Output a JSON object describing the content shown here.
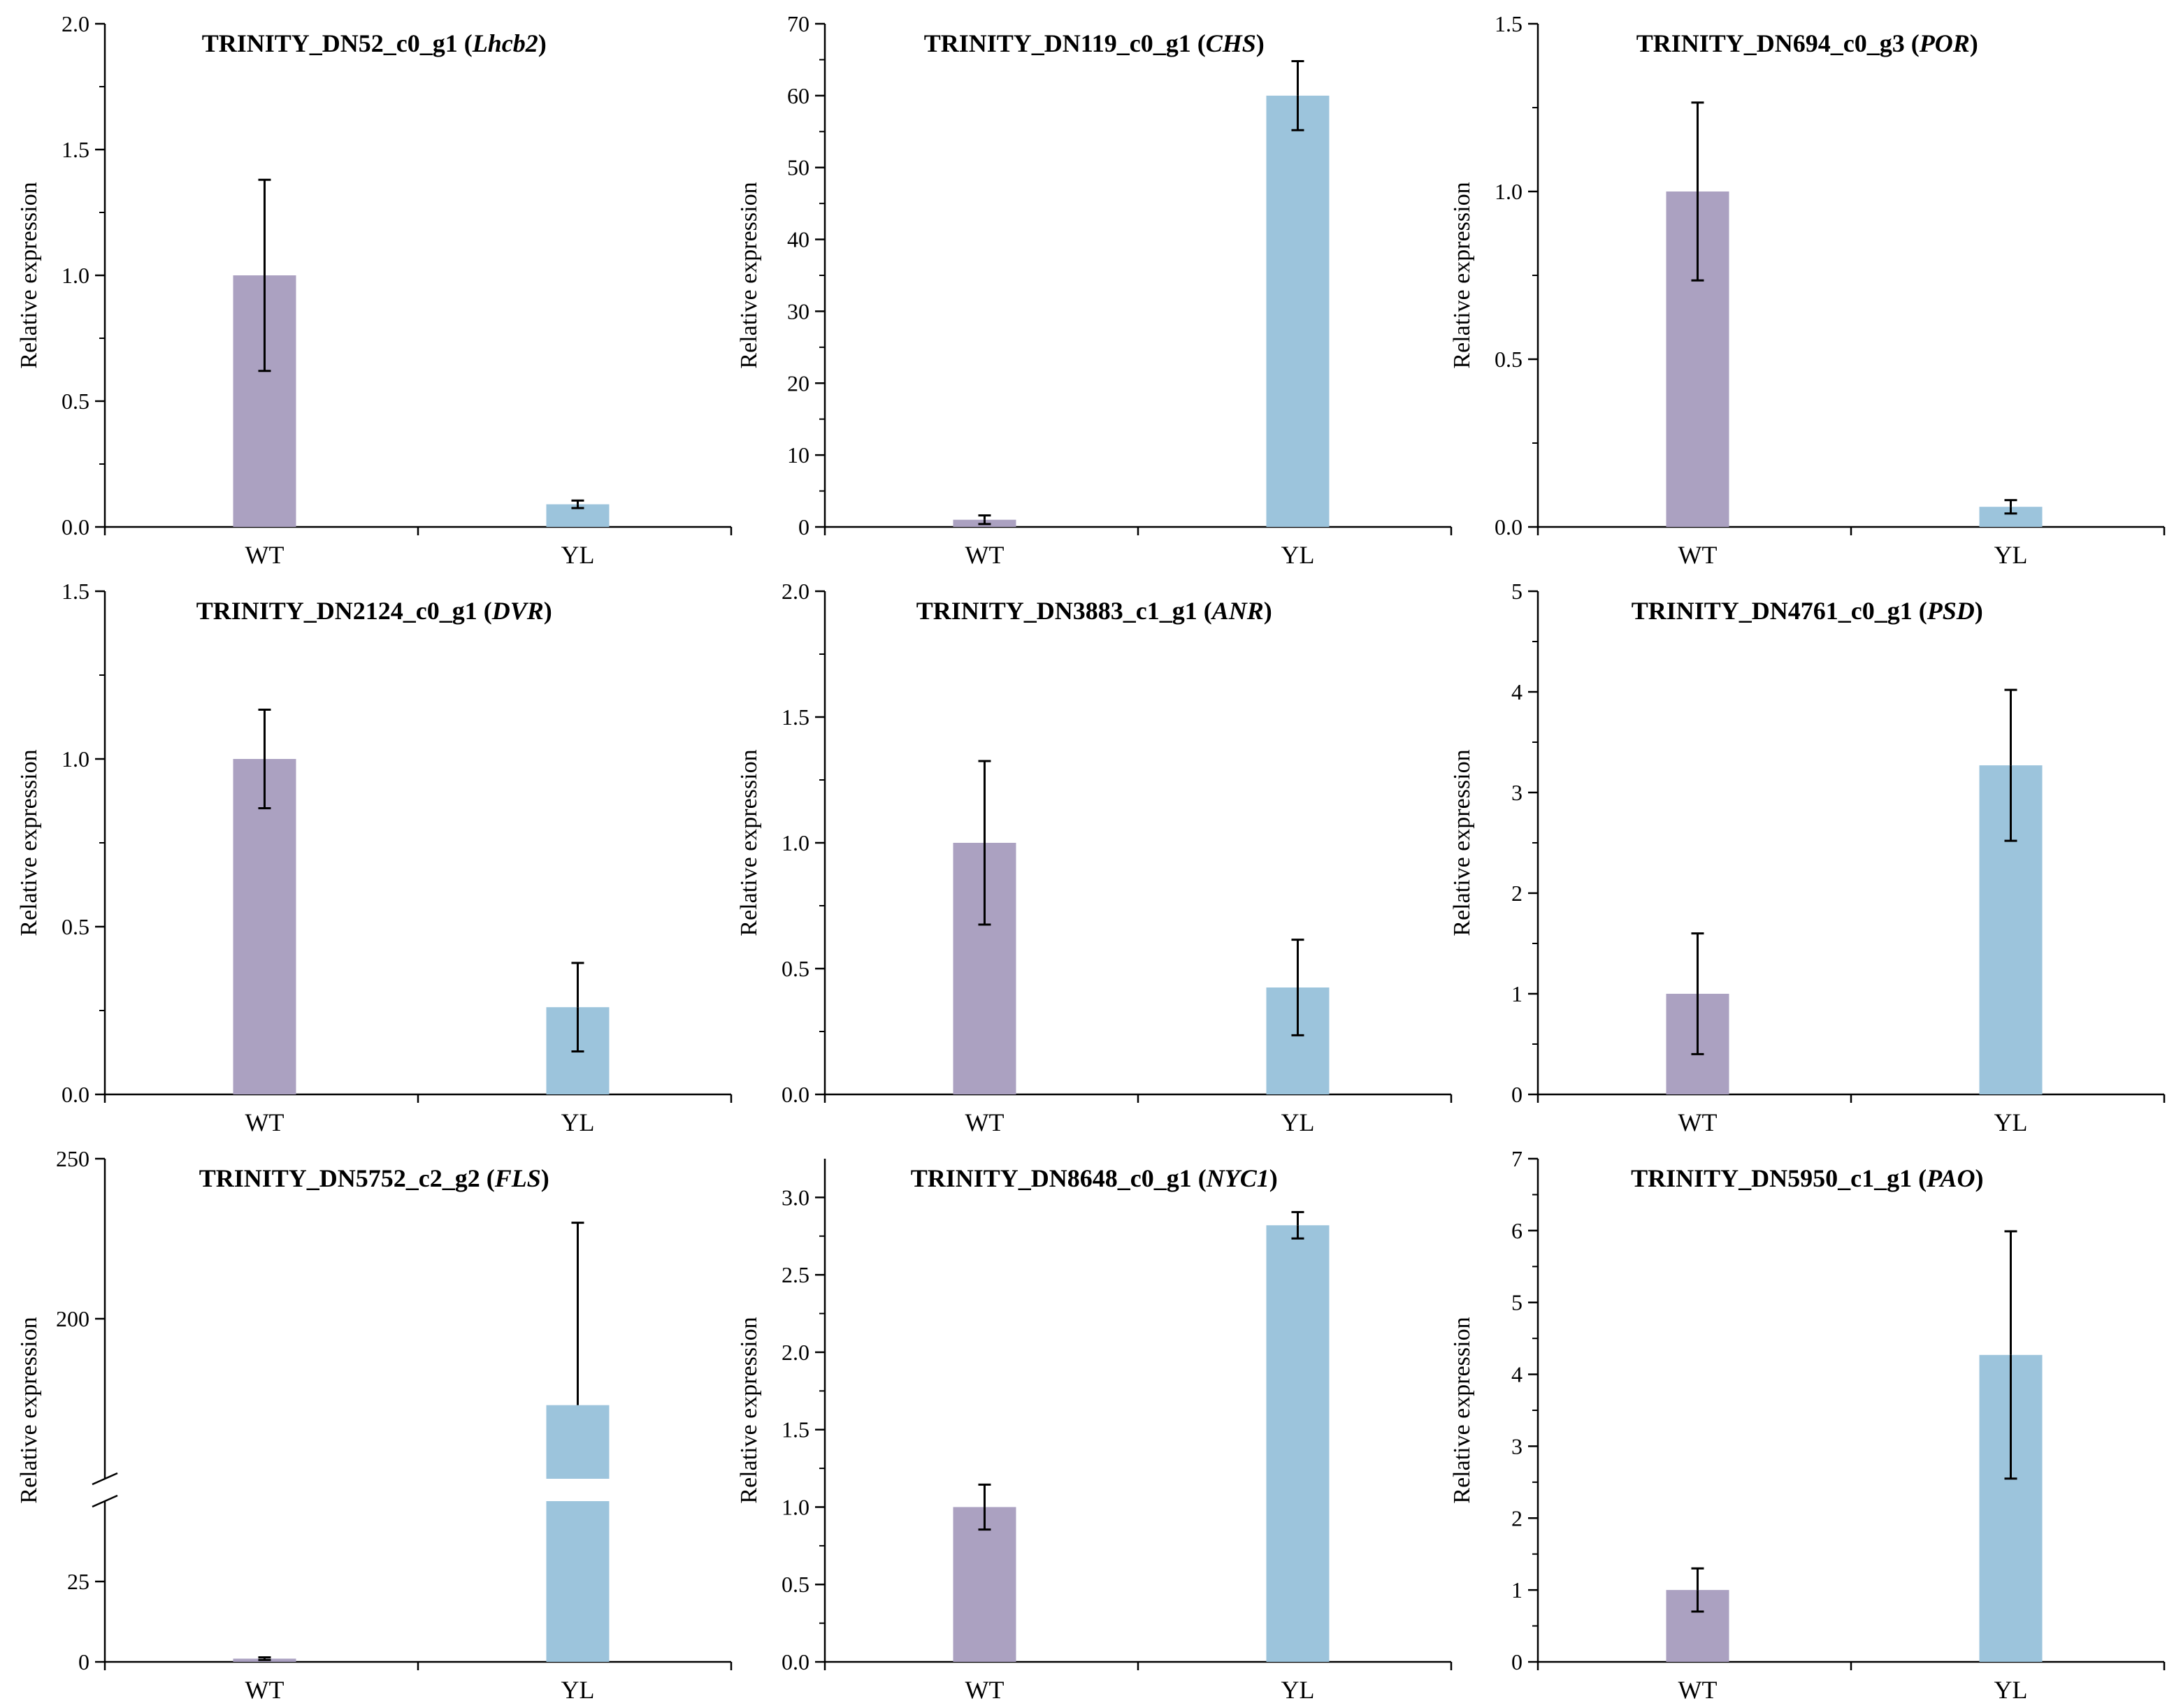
{
  "colors": {
    "wt": "#aba1c1",
    "yl": "#9cc4dc",
    "axis": "#000000"
  },
  "chart_data": [
    {
      "type": "bar",
      "title_prefix": "TRINITY_DN52_c0_g1 (",
      "title_gene": "Lhcb2",
      "title_suffix": ")",
      "ylabel": "Relative expression",
      "categories": [
        "WT",
        "YL"
      ],
      "values": [
        1.0,
        0.09
      ],
      "errors": [
        0.38,
        0.015
      ],
      "ylim": [
        0,
        2.0
      ],
      "yticks": [
        "0.0",
        "0.5",
        "1.0",
        "1.5",
        "2.0"
      ]
    },
    {
      "type": "bar",
      "title_prefix": "TRINITY_DN119_c0_g1 (",
      "title_gene": "CHS",
      "title_suffix": ")",
      "ylabel": "Relative expression",
      "categories": [
        "WT",
        "YL"
      ],
      "values": [
        1.0,
        60.0
      ],
      "errors": [
        0.6,
        4.8
      ],
      "ylim": [
        0,
        70
      ],
      "yticks": [
        "0",
        "10",
        "20",
        "30",
        "40",
        "50",
        "60",
        "70"
      ]
    },
    {
      "type": "bar",
      "title_prefix": "TRINITY_DN694_c0_g3 (",
      "title_gene": "POR",
      "title_suffix": ")",
      "ylabel": "Relative expression",
      "categories": [
        "WT",
        "YL"
      ],
      "values": [
        1.0,
        0.06
      ],
      "errors": [
        0.265,
        0.02
      ],
      "ylim": [
        0,
        1.5
      ],
      "yticks": [
        "0.0",
        "0.5",
        "1.0",
        "1.5"
      ]
    },
    {
      "type": "bar",
      "title_prefix": "TRINITY_DN2124_c0_g1 (",
      "title_gene": "DVR",
      "title_suffix": ")",
      "ylabel": "Relative expression",
      "categories": [
        "WT",
        "YL"
      ],
      "values": [
        1.0,
        0.26
      ],
      "errors": [
        0.147,
        0.132
      ],
      "ylim": [
        0,
        1.5
      ],
      "yticks": [
        "0.0",
        "0.5",
        "1.0",
        "1.5"
      ]
    },
    {
      "type": "bar",
      "title_prefix": "TRINITY_DN3883_c1_g1 (",
      "title_gene": "ANR",
      "title_suffix": ")",
      "ylabel": "Relative expression",
      "categories": [
        "WT",
        "YL"
      ],
      "values": [
        1.0,
        0.425
      ],
      "errors": [
        0.325,
        0.19
      ],
      "ylim": [
        0,
        2.0
      ],
      "yticks": [
        "0.0",
        "0.5",
        "1.0",
        "1.5",
        "2.0"
      ]
    },
    {
      "type": "bar",
      "title_prefix": "TRINITY_DN4761_c0_g1 (",
      "title_gene": "PSD",
      "title_suffix": ")",
      "ylabel": "Relative expression",
      "categories": [
        "WT",
        "YL"
      ],
      "values": [
        1.0,
        3.27
      ],
      "errors": [
        0.6,
        0.75
      ],
      "ylim": [
        0,
        5
      ],
      "yticks": [
        "0",
        "1",
        "2",
        "3",
        "4",
        "5"
      ]
    },
    {
      "type": "bar",
      "title_prefix": "TRINITY_DN5752_c2_g2 (",
      "title_gene": "FLS",
      "title_suffix": ")",
      "ylabel": "Relative expression",
      "categories": [
        "WT",
        "YL"
      ],
      "values": [
        1.0,
        173
      ],
      "errors": [
        0.4,
        57
      ],
      "broken_axis": {
        "lower": [
          0,
          50
        ],
        "upper": [
          150,
          250
        ]
      },
      "ylim": [
        0,
        250
      ],
      "yticks": [
        "0",
        "25",
        "200",
        "250"
      ]
    },
    {
      "type": "bar",
      "title_prefix": "TRINITY_DN8648_c0_g1 (",
      "title_gene": "NYC1",
      "title_suffix": ")",
      "ylabel": "Relative expression",
      "categories": [
        "WT",
        "YL"
      ],
      "values": [
        1.0,
        2.82
      ],
      "errors": [
        0.145,
        0.085
      ],
      "ylim": [
        0,
        3.25
      ],
      "yticks": [
        "0.0",
        "0.5",
        "1.0",
        "1.5",
        "2.0",
        "2.5",
        "3.0"
      ]
    },
    {
      "type": "bar",
      "title_prefix": "TRINITY_DN5950_c1_g1 (",
      "title_gene": "PAO",
      "title_suffix": ")",
      "ylabel": "Relative expression",
      "categories": [
        "WT",
        "YL"
      ],
      "values": [
        1.0,
        4.27
      ],
      "errors": [
        0.3,
        1.72
      ],
      "ylim": [
        0,
        7
      ],
      "yticks": [
        "0",
        "1",
        "2",
        "3",
        "4",
        "5",
        "6",
        "7"
      ]
    }
  ]
}
